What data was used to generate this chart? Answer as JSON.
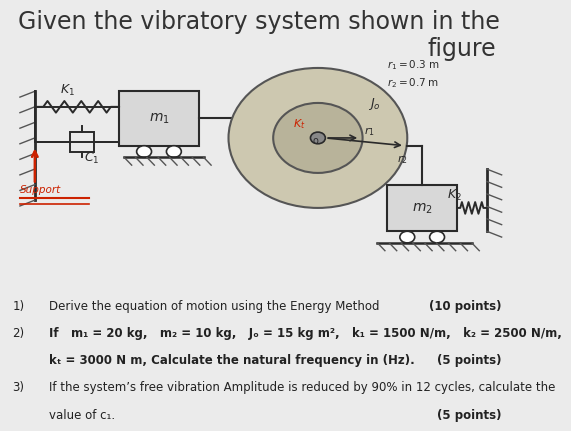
{
  "title_line1": "Given the vibratory system shown in the",
  "title_line2": "figure",
  "title_fontsize": 17,
  "title_color": "#333333",
  "bg_color": "#ebebeb",
  "photo_bg": "#d4cfc0",
  "q1_num": "1)",
  "q1_text": "Derive the equation of motion using the Energy Method",
  "q1_points": "(10 points)",
  "q2_num": "2)",
  "q2_line1": "If   m₁ = 20 kg,   m₂ = 10 kg,   Jₒ = 15 kg m²,   k₁ = 1500 N/m,   k₂ = 2500 N/m,",
  "q2_line2": "kₜ = 3000 N m, Calculate the natural frequency in (Hz).",
  "q2_points": "(5 points)",
  "q3_num": "3)",
  "q3_line1": "If the system’s free vibration Amplitude is reduced by 90% in 12 cycles, calculate the",
  "q3_line2": "value of c₁.",
  "q3_points": "(5 points)",
  "text_fontsize": 8.5,
  "points_fontsize": 8.5
}
